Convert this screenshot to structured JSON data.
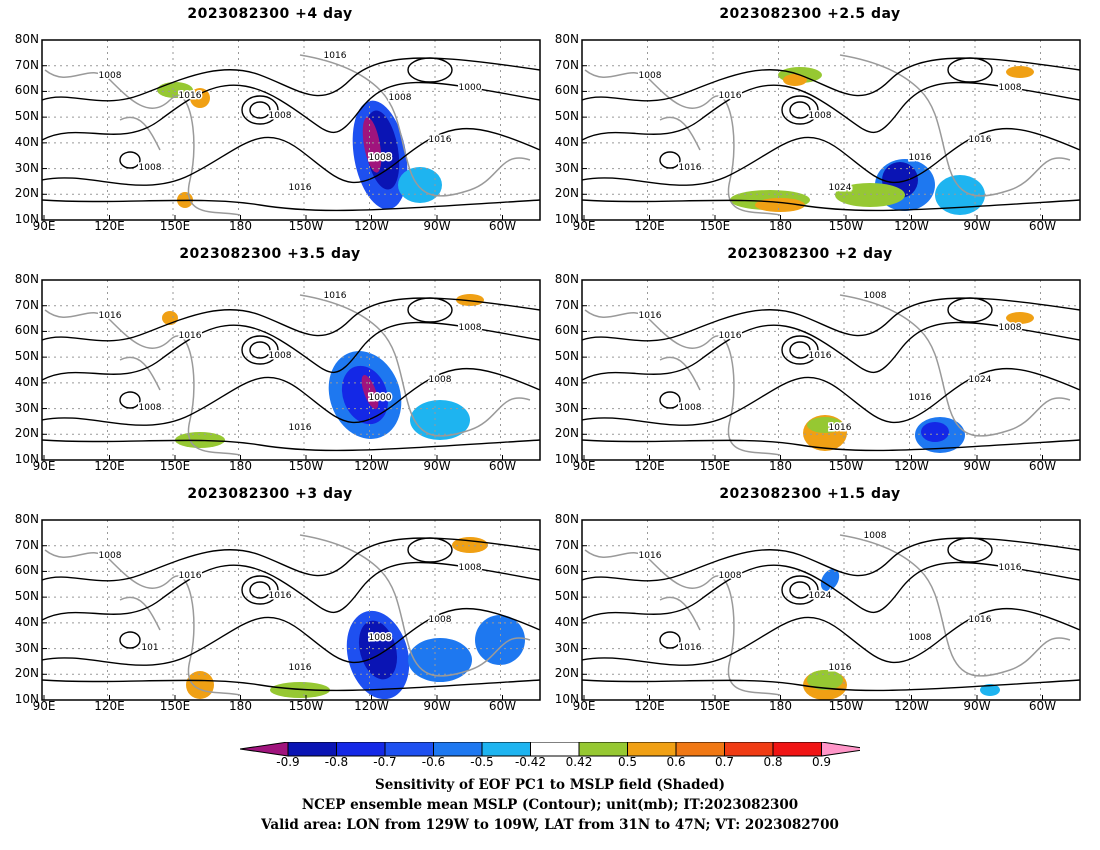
{
  "panels": [
    {
      "title": "2023082300  +4 day",
      "contour_labels": [
        "1016",
        "1008",
        "1000",
        "1008",
        "1008",
        "1016",
        "1016",
        "1008",
        "1016",
        "1008"
      ]
    },
    {
      "title": "2023082300  +2.5  day",
      "contour_labels": [
        "1016",
        "1008",
        "1008",
        "1016",
        "1008",
        "1024",
        "1016",
        "1016"
      ]
    },
    {
      "title": "2023082300  +3.5  day",
      "contour_labels": [
        "1016",
        "1016",
        "1008",
        "1000",
        "1008",
        "1016",
        "1008",
        "1008",
        "1016"
      ]
    },
    {
      "title": "2023082300  +2  day",
      "contour_labels": [
        "1016",
        "1016",
        "1008",
        "1016",
        "1016",
        "1016",
        "1024",
        "1008",
        "1008"
      ]
    },
    {
      "title": "2023082300  +3  day",
      "contour_labels": [
        "1016",
        "1008",
        "1008",
        "1008",
        "1016",
        "1016",
        "1008",
        "101"
      ]
    },
    {
      "title": "2023082300  +1.5  day",
      "contour_labels": [
        "1008",
        "1016",
        "1016",
        "1008",
        "1024",
        "1016",
        "1016",
        "1016",
        "1008"
      ]
    }
  ],
  "axes": {
    "lat_ticks": [
      "80N",
      "70N",
      "60N",
      "50N",
      "40N",
      "30N",
      "20N",
      "10N"
    ],
    "lon_ticks": [
      "90E",
      "120E",
      "150E",
      "180",
      "150W",
      "120W",
      "90W",
      "60W"
    ]
  },
  "colorbar": {
    "labels": [
      "-0.9",
      "-0.8",
      "-0.7",
      "-0.6",
      "-0.5",
      "-0.42",
      "0.42",
      "0.5",
      "0.6",
      "0.7",
      "0.8",
      "0.9"
    ],
    "colors": [
      "#a0147d",
      "#0a14b4",
      "#1428e6",
      "#1e50f0",
      "#1e78f0",
      "#1eb4f0",
      "#ffffff",
      "#96c832",
      "#f0a014",
      "#f07814",
      "#f03c14",
      "#f01414",
      "#ff96c8"
    ]
  },
  "caption": {
    "line1": "Sensitivity of EOF PC1 to MSLP field (Shaded)",
    "line2": "NCEP ensemble mean MSLP (Contour); unit(mb); IT:2023082300",
    "line3": "Valid area: LON from 129W to 109W, LAT from 31N to 47N; VT: 2023082700"
  }
}
